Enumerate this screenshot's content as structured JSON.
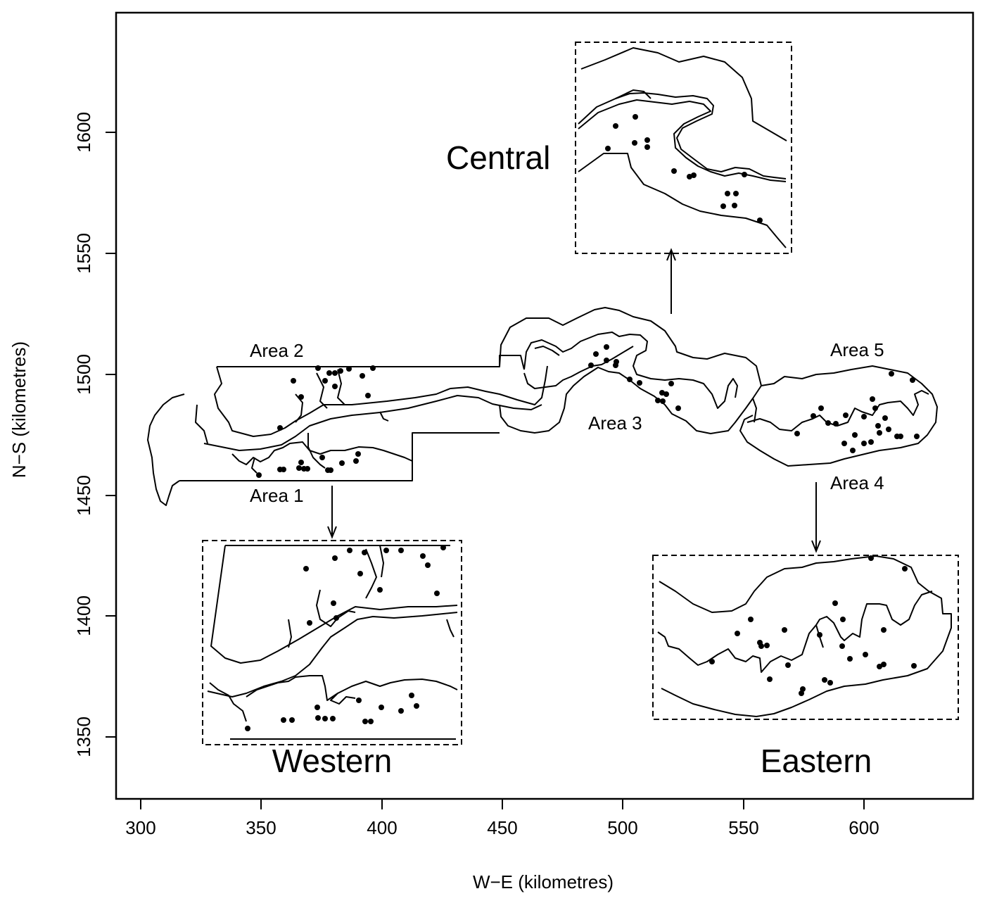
{
  "axes": {
    "xlabel": "W−E (kilometres)",
    "ylabel": "N−S (kilometres)",
    "xlim": [
      290,
      645
    ],
    "ylim": [
      1325,
      1645
    ],
    "xticks": [
      "300",
      "350",
      "400",
      "450",
      "500",
      "550",
      "600"
    ],
    "yticks": [
      "1350",
      "1400",
      "1450",
      "1500",
      "1550",
      "1600"
    ]
  },
  "area_labels": {
    "area1": "Area 1",
    "area2": "Area 2",
    "area3": "Area 3",
    "area4": "Area 4",
    "area5": "Area 5"
  },
  "inset_labels": {
    "western": "Western",
    "central": "Central",
    "eastern": "Eastern"
  },
  "colors": {
    "ink": "#000000",
    "background": "#ffffff"
  }
}
